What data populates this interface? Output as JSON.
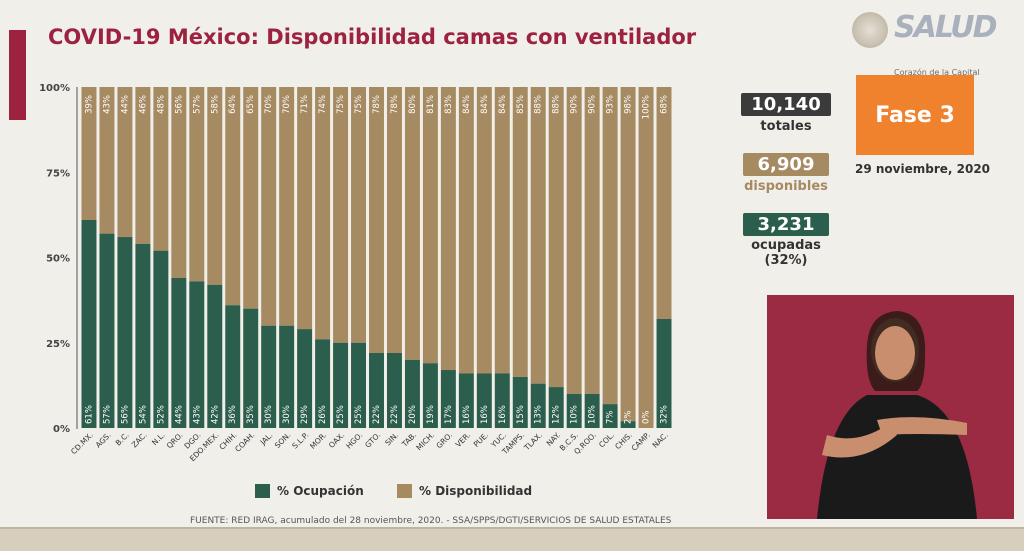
{
  "title": "COVID-19 México: Disponibilidad camas con ventilador",
  "branding": {
    "logo_text": "SALUD",
    "tagline": "Corazón de la Capital"
  },
  "colors": {
    "occupied": "#2c5e4d",
    "available": "#a68a62",
    "accent": "#9c2240",
    "phase": "#f1822d"
  },
  "stats": {
    "total_value": "10,140",
    "total_label": "totales",
    "available_value": "6,909",
    "available_label": "disponibles",
    "occupied_value": "3,231",
    "occupied_label": "ocupadas",
    "occupied_pct": "(32%)"
  },
  "phase_label": "Fase 3",
  "date": "29 noviembre, 2020",
  "source": "FUENTE: RED IRAG, acumulado del 28 noviembre, 2020.  -  SSA/SPPS/DGTI/SERVICIOS DE SALUD ESTATALES",
  "chart_data": {
    "type": "bar",
    "stacked": true,
    "ylim": [
      0,
      100
    ],
    "yticks": [
      "0%",
      "25%",
      "50%",
      "75%",
      "100%"
    ],
    "grid": false,
    "legend_position": "bottom",
    "categories": [
      "CD.MX.",
      "AGS.",
      "B.C.",
      "ZAC.",
      "N.L.",
      "QRO.",
      "DGO.",
      "EDO.MEX.",
      "CHIH.",
      "COAH.",
      "JAL.",
      "SON.",
      "S.L.P.",
      "MOR.",
      "OAX.",
      "HGO.",
      "GTO.",
      "SIN.",
      "TAB.",
      "MICH.",
      "GRO.",
      "VER.",
      "PUE.",
      "YUC.",
      "TAMPS.",
      "TLAX.",
      "NAY.",
      "B.C.S.",
      "Q.ROO.",
      "COL.",
      "CHIS.",
      "CAMP.",
      "NAC."
    ],
    "series": [
      {
        "name": "% Ocupación",
        "values": [
          61,
          57,
          56,
          54,
          52,
          44,
          43,
          42,
          36,
          35,
          30,
          30,
          29,
          26,
          25,
          25,
          22,
          22,
          20,
          19,
          17,
          16,
          16,
          16,
          15,
          13,
          12,
          10,
          10,
          7,
          2,
          0,
          32
        ]
      },
      {
        "name": "% Disponibilidad",
        "values": [
          39,
          43,
          44,
          46,
          48,
          56,
          57,
          58,
          64,
          65,
          70,
          70,
          71,
          74,
          75,
          75,
          78,
          78,
          80,
          81,
          83,
          84,
          84,
          84,
          85,
          88,
          88,
          90,
          90,
          93,
          98,
          100,
          68
        ]
      }
    ]
  }
}
